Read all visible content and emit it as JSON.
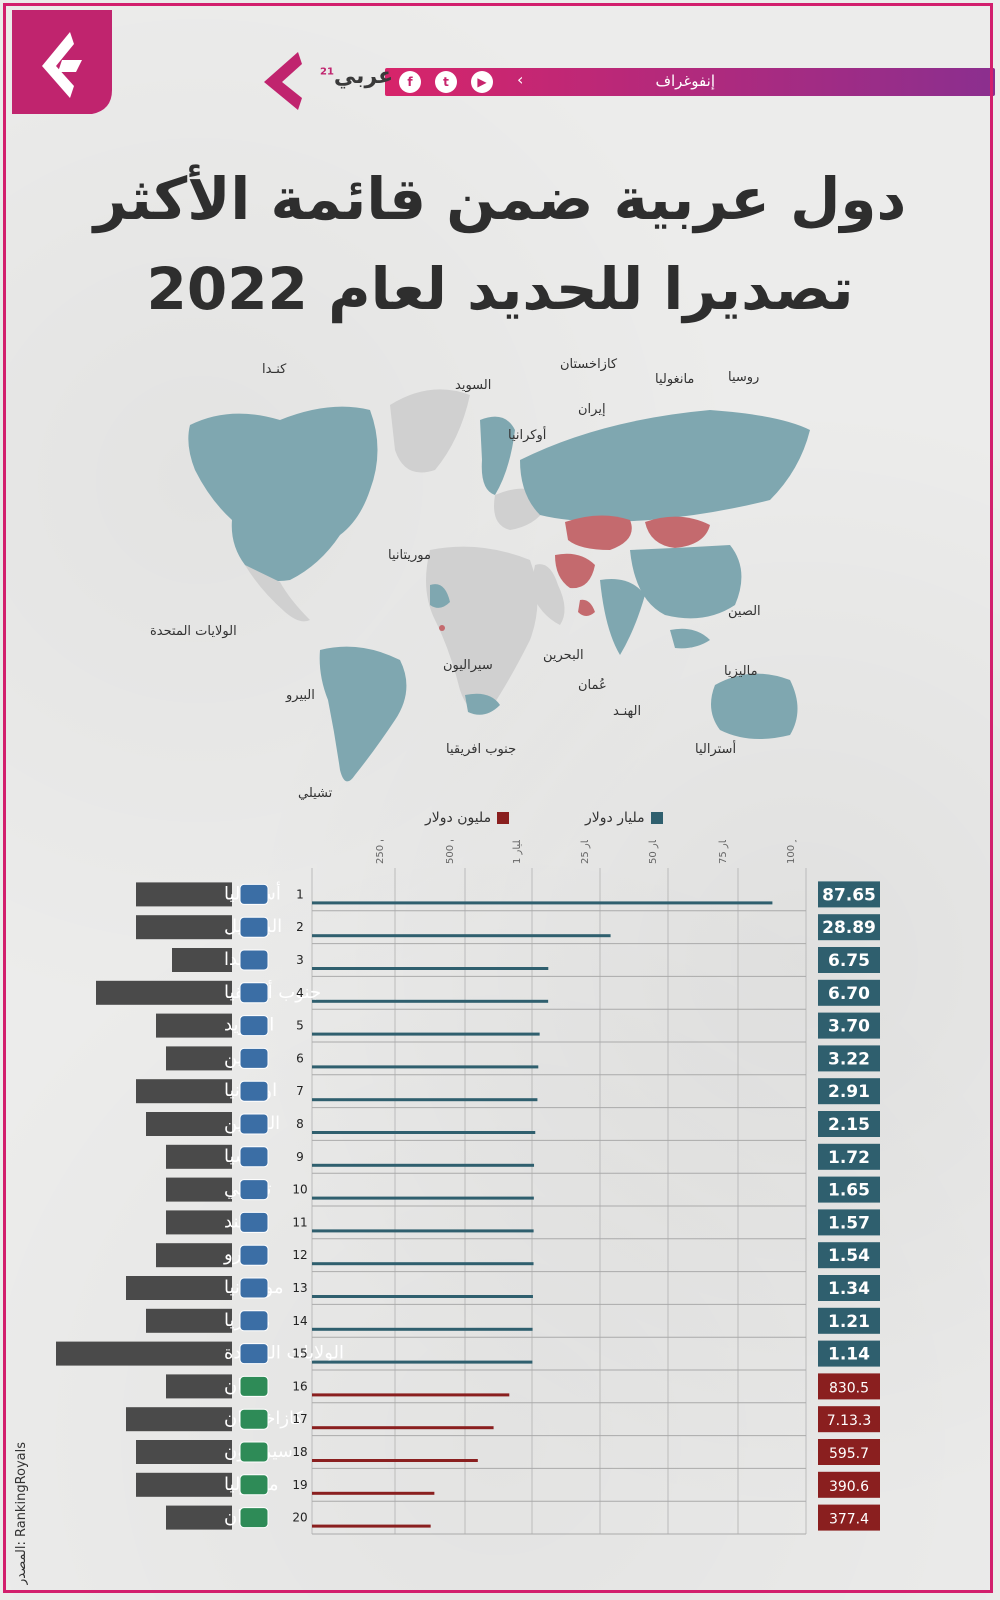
{
  "header": {
    "section_label": "إنفوغراف",
    "brand": "عربي",
    "brand_sup": "21",
    "social_icons": [
      "facebook-icon",
      "twitter-icon",
      "youtube-icon"
    ]
  },
  "title": {
    "line1": "دول عربية ضمن قائمة الأكثر",
    "line2": "تصديرا للحديد لعام 2022"
  },
  "map": {
    "labels": [
      "كنـدا",
      "السويد",
      "كازاخستان",
      "روسيا",
      "مانغوليا",
      "إيران",
      "أوكرانيا",
      "موريتانيا",
      "الولايات المتحدة",
      "الصين",
      "البحرين",
      "ماليزيا",
      "عُمان",
      "سيراليون",
      "البيرو",
      "الهنـد",
      "أستراليا",
      "جنوب افريقيا",
      "تشيلي"
    ]
  },
  "legend": {
    "billion": "مليار دولار",
    "million": "مليون دولار"
  },
  "colors": {
    "billion": "#2f5f6e",
    "million": "#8a1f1f",
    "map_teal": "#7fa7b0",
    "map_red": "#c46a6e",
    "accent": "#d21f6d"
  },
  "chart_data": {
    "type": "bar",
    "orientation": "horizontal",
    "axis_ticks": [
      "250 مليون",
      "500 مليون",
      "1 مليار",
      "25 مليار",
      "50 مليار",
      "75 مليار",
      "100 مليار"
    ],
    "rows": [
      {
        "rank": "1",
        "country": "أستراليا",
        "value": "87.65",
        "unit": "billion",
        "flag": "australia",
        "bar": 87.65
      },
      {
        "rank": "2",
        "country": "البرازيل",
        "value": "28.89",
        "unit": "billion",
        "flag": "brazil",
        "bar": 28.89
      },
      {
        "rank": "3",
        "country": "كندا",
        "value": "6.75",
        "unit": "billion",
        "flag": "canada",
        "bar": 6.75
      },
      {
        "rank": "4",
        "country": "جنوب أفريقيا",
        "value": "6.70",
        "unit": "billion",
        "flag": "south-africa",
        "bar": 6.7
      },
      {
        "rank": "5",
        "country": "السويد",
        "value": "3.70",
        "unit": "billion",
        "flag": "sweden",
        "bar": 3.7
      },
      {
        "rank": "6",
        "country": "الصين",
        "value": "3.22",
        "unit": "billion",
        "flag": "china",
        "bar": 3.22
      },
      {
        "rank": "7",
        "country": "اوكرانيا",
        "value": "2.91",
        "unit": "billion",
        "flag": "ukraine",
        "bar": 2.91
      },
      {
        "rank": "8",
        "country": "البحرين",
        "value": "2.15",
        "unit": "billion",
        "flag": "bahrain",
        "bar": 2.15
      },
      {
        "rank": "9",
        "country": "روسيا",
        "value": "1.72",
        "unit": "billion",
        "flag": "russia",
        "bar": 1.72
      },
      {
        "rank": "10",
        "country": "تشيلي",
        "value": "1.65",
        "unit": "billion",
        "flag": "chile",
        "bar": 1.65
      },
      {
        "rank": "11",
        "country": "الهند",
        "value": "1.57",
        "unit": "billion",
        "flag": "india",
        "bar": 1.57
      },
      {
        "rank": "12",
        "country": "البيرو",
        "value": "1.54",
        "unit": "billion",
        "flag": "peru",
        "bar": 1.54
      },
      {
        "rank": "13",
        "country": "موريتانيا",
        "value": "1.34",
        "unit": "billion",
        "flag": "mauritania",
        "bar": 1.34
      },
      {
        "rank": "14",
        "country": "ماليزيا",
        "value": "1.21",
        "unit": "billion",
        "flag": "malaysia",
        "bar": 1.21
      },
      {
        "rank": "15",
        "country": "الولايات المتحدة",
        "value": "1.14",
        "unit": "billion",
        "flag": "usa",
        "bar": 1.14
      },
      {
        "rank": "16",
        "country": "عُمان",
        "value": "830.5",
        "unit": "million",
        "flag": "oman",
        "bar": 830.5
      },
      {
        "rank": "17",
        "country": "كازاخستان",
        "value": "7.13.3",
        "unit": "million",
        "flag": "kazakhstan",
        "bar": 713.3
      },
      {
        "rank": "18",
        "country": "سيراليون",
        "value": "595.7",
        "unit": "million",
        "flag": "sierra-leone",
        "bar": 595.7
      },
      {
        "rank": "19",
        "country": "مانغوليا",
        "value": "390.6",
        "unit": "million",
        "flag": "mongolia",
        "bar": 390.6
      },
      {
        "rank": "20",
        "country": "إيران",
        "value": "377.4",
        "unit": "million",
        "flag": "iran",
        "bar": 377.4
      }
    ]
  },
  "source": "المصدر: RankingRoyals"
}
